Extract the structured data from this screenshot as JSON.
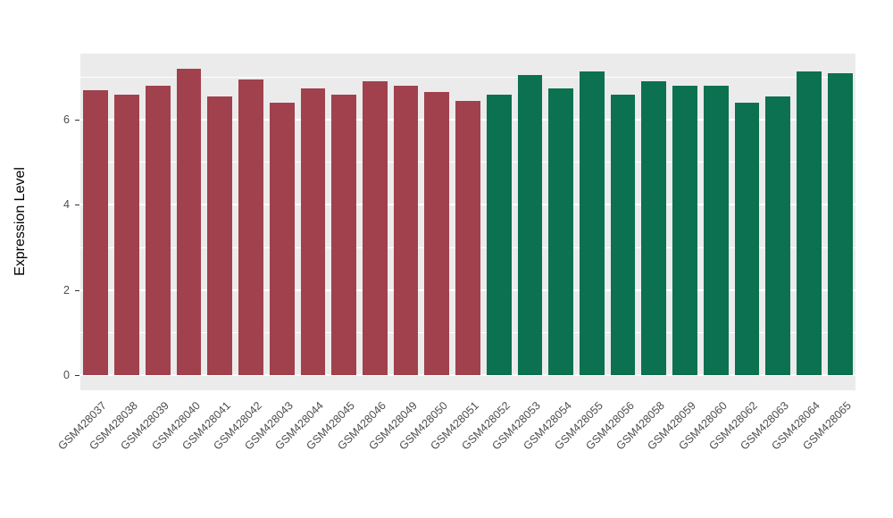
{
  "chart_data": {
    "type": "bar",
    "title": "",
    "xlabel": "",
    "ylabel": "Expression Level",
    "ylim": [
      0,
      7.2
    ],
    "yticks": [
      0,
      2,
      4,
      6
    ],
    "yticks_minor": [
      1,
      3,
      5,
      7
    ],
    "grid": "on",
    "legend": "none",
    "panel_background": "#EBEBEB",
    "gridline_color": "#FFFFFF",
    "group_colors": {
      "group1": "#A0414D",
      "group2": "#0B7150"
    },
    "categories": [
      "GSM428037",
      "GSM428038",
      "GSM428039",
      "GSM428040",
      "GSM428041",
      "GSM428042",
      "GSM428043",
      "GSM428044",
      "GSM428045",
      "GSM428046",
      "GSM428049",
      "GSM428050",
      "GSM428051",
      "GSM428052",
      "GSM428053",
      "GSM428054",
      "GSM428055",
      "GSM428056",
      "GSM428058",
      "GSM428059",
      "GSM428060",
      "GSM428062",
      "GSM428063",
      "GSM428064",
      "GSM428065"
    ],
    "values": [
      6.7,
      6.6,
      6.8,
      7.2,
      6.55,
      6.95,
      6.4,
      6.75,
      6.6,
      6.9,
      6.8,
      6.65,
      6.45,
      6.6,
      7.05,
      6.75,
      7.15,
      6.6,
      6.9,
      6.8,
      6.8,
      6.4,
      6.55,
      7.15,
      7.1
    ],
    "bar_groups": [
      "group1",
      "group1",
      "group1",
      "group1",
      "group1",
      "group1",
      "group1",
      "group1",
      "group1",
      "group1",
      "group1",
      "group1",
      "group1",
      "group2",
      "group2",
      "group2",
      "group2",
      "group2",
      "group2",
      "group2",
      "group2",
      "group2",
      "group2",
      "group2",
      "group2"
    ]
  }
}
